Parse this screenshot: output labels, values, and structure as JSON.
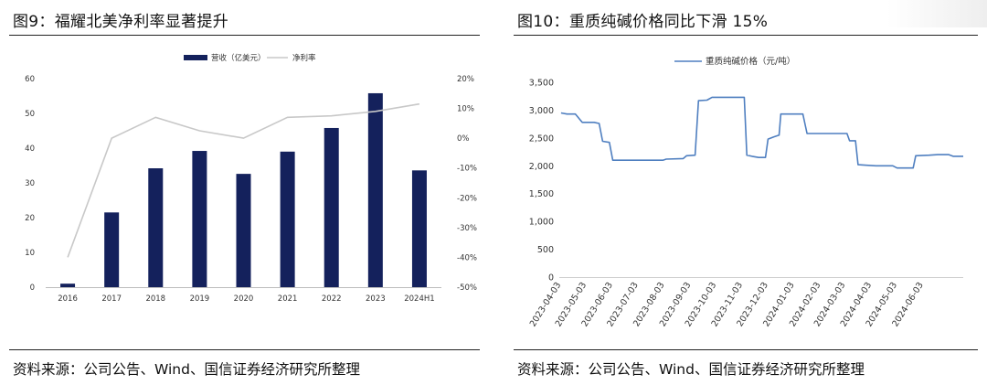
{
  "left": {
    "title": "图9：福耀北美净利率显著提升",
    "source": "资料来源：公司公告、Wind、国信证券经济研究所整理",
    "chart_data": {
      "type": "bar+line",
      "categories": [
        "2016",
        "2017",
        "2018",
        "2019",
        "2020",
        "2021",
        "2022",
        "2023",
        "2024H1"
      ],
      "series": [
        {
          "name": "营收（亿美元）",
          "kind": "bar",
          "axis": "left",
          "color": "#14215c",
          "values": [
            1.0,
            21.5,
            34.2,
            39.2,
            32.6,
            39.0,
            45.8,
            55.8,
            33.6
          ]
        },
        {
          "name": "净利率",
          "kind": "line",
          "axis": "right",
          "color": "#c8c8c8",
          "values": [
            -40,
            0,
            7,
            2.5,
            0,
            7,
            7.5,
            9,
            11.5
          ]
        }
      ],
      "y_left": {
        "ylim": [
          0,
          60
        ],
        "ticks": [
          "0",
          "10",
          "20",
          "30",
          "40",
          "50",
          "60"
        ]
      },
      "y_right": {
        "ylim": [
          -50,
          20
        ],
        "ticks": [
          "-50%",
          "-40%",
          "-30%",
          "-20%",
          "-10%",
          "0%",
          "10%",
          "20%"
        ]
      },
      "legend": "top-center",
      "grid": false
    }
  },
  "right": {
    "title": "图10：重质纯碱价格同比下滑 15%",
    "source": "资料来源：公司公告、Wind、国信证券经济研究所整理",
    "chart_data": {
      "type": "line",
      "series": [
        {
          "name": "重质纯碱价格（元/吨）",
          "color": "#4f7fc0",
          "points": [
            [
              "2023-04-03",
              2950
            ],
            [
              "2023-04-10",
              2930
            ],
            [
              "2023-04-20",
              2930
            ],
            [
              "2023-04-28",
              2780
            ],
            [
              "2023-05-12",
              2780
            ],
            [
              "2023-05-18",
              2760
            ],
            [
              "2023-05-22",
              2440
            ],
            [
              "2023-05-30",
              2420
            ],
            [
              "2023-06-03",
              2100
            ],
            [
              "2023-07-15",
              2100
            ],
            [
              "2023-08-01",
              2100
            ],
            [
              "2023-08-05",
              2120
            ],
            [
              "2023-08-25",
              2130
            ],
            [
              "2023-08-29",
              2180
            ],
            [
              "2023-09-08",
              2190
            ],
            [
              "2023-09-12",
              3170
            ],
            [
              "2023-09-22",
              3180
            ],
            [
              "2023-09-28",
              3230
            ],
            [
              "2023-11-05",
              3230
            ],
            [
              "2023-11-08",
              2190
            ],
            [
              "2023-11-14",
              2170
            ],
            [
              "2023-11-22",
              2150
            ],
            [
              "2023-11-30",
              2150
            ],
            [
              "2023-12-03",
              2480
            ],
            [
              "2023-12-10",
              2520
            ],
            [
              "2023-12-16",
              2550
            ],
            [
              "2023-12-18",
              2930
            ],
            [
              "2024-01-13",
              2930
            ],
            [
              "2024-01-18",
              2580
            ],
            [
              "2024-03-05",
              2580
            ],
            [
              "2024-03-08",
              2450
            ],
            [
              "2024-03-15",
              2450
            ],
            [
              "2024-03-18",
              2020
            ],
            [
              "2024-03-28",
              2010
            ],
            [
              "2024-04-08",
              2000
            ],
            [
              "2024-04-28",
              2000
            ],
            [
              "2024-05-03",
              1960
            ],
            [
              "2024-05-22",
              1960
            ],
            [
              "2024-05-25",
              2180
            ],
            [
              "2024-06-10",
              2190
            ],
            [
              "2024-06-20",
              2200
            ],
            [
              "2024-07-03",
              2200
            ],
            [
              "2024-07-08",
              2170
            ],
            [
              "2024-07-20",
              2170
            ]
          ]
        }
      ],
      "x_ticks": [
        "2023-04-03",
        "2023-05-03",
        "2023-06-03",
        "2023-07-03",
        "2023-08-03",
        "2023-09-03",
        "2023-10-03",
        "2023-11-03",
        "2023-12-03",
        "2024-01-03",
        "2024-02-03",
        "2024-03-03",
        "2024-04-03",
        "2024-05-03",
        "2024-06-03"
      ],
      "y_ticks": [
        "0",
        "500",
        "1,000",
        "1,500",
        "2,000",
        "2,500",
        "3,000",
        "3,500"
      ],
      "xlim": [
        "2023-04-01",
        "2024-07-20"
      ],
      "ylim": [
        0,
        3500
      ],
      "legend": "top-left",
      "grid": false
    }
  }
}
